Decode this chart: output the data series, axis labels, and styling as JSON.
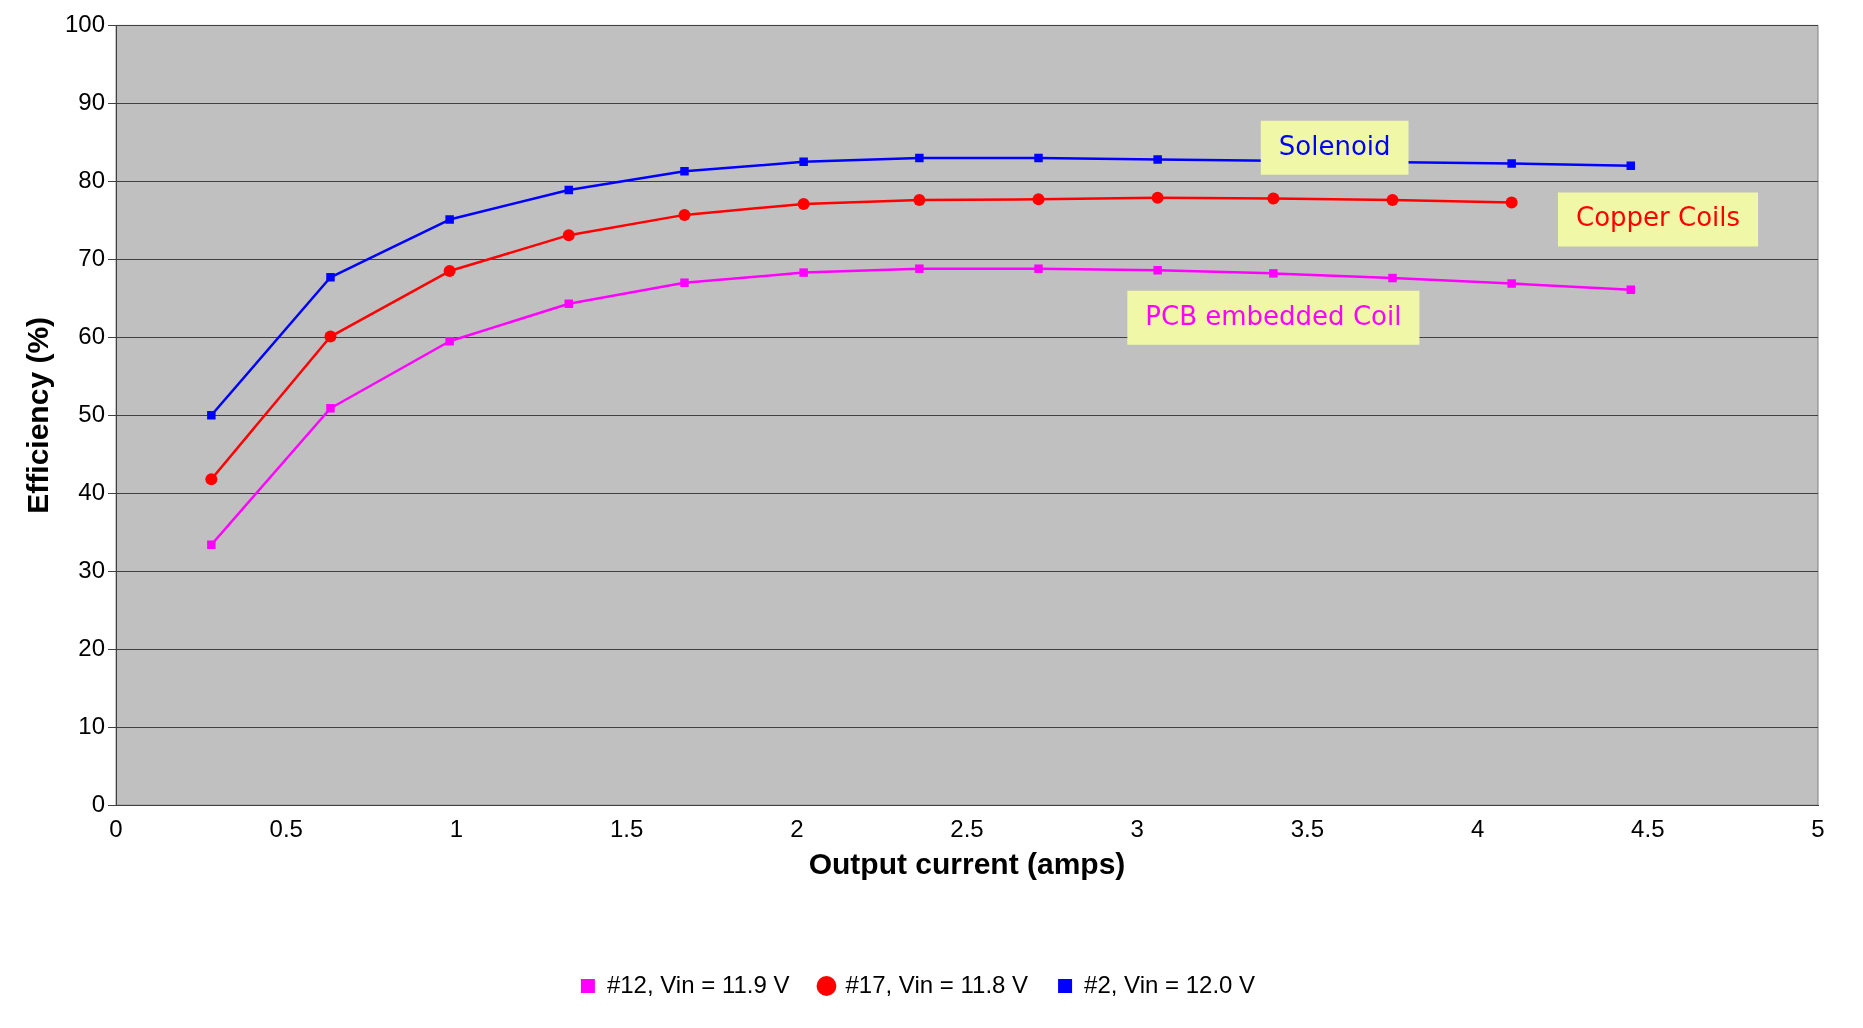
{
  "chart_data": {
    "type": "line",
    "xlabel": "Output current (amps)",
    "ylabel": "Efficiency (%)",
    "xlim": [
      0,
      5
    ],
    "xticks": [
      0,
      0.5,
      1,
      1.5,
      2,
      2.5,
      3,
      3.5,
      4,
      4.5,
      5
    ],
    "ylim": [
      0,
      100
    ],
    "yticks": [
      0,
      10,
      20,
      30,
      40,
      50,
      60,
      70,
      80,
      90,
      100
    ],
    "grid": "y",
    "legend": "bottom",
    "x": [
      0.28,
      0.63,
      0.98,
      1.33,
      1.67,
      2.02,
      2.36,
      2.71,
      3.06,
      3.4,
      3.75,
      4.1,
      4.45
    ],
    "series": [
      {
        "name": "#12, Vin = 11.9 V",
        "color": "#ff00ff",
        "marker": "square",
        "values": [
          33.4,
          50.9,
          59.5,
          64.3,
          67.0,
          68.3,
          68.8,
          68.8,
          68.6,
          68.2,
          67.6,
          66.9,
          66.1
        ]
      },
      {
        "name": "#17, Vin = 11.8 V",
        "color": "#ff0000",
        "marker": "circle",
        "values": [
          41.8,
          60.1,
          68.5,
          73.1,
          75.7,
          77.1,
          77.6,
          77.7,
          77.9,
          77.8,
          77.6,
          77.3,
          null
        ]
      },
      {
        "name": "#2, Vin = 12.0 V",
        "color": "#0000ff",
        "marker": "square",
        "values": [
          50.0,
          67.7,
          75.1,
          78.9,
          81.3,
          82.5,
          83.0,
          83.0,
          82.8,
          null,
          null,
          82.3,
          82.0
        ]
      }
    ],
    "annotations": [
      "PCB embedded Coil",
      "Copper Coils",
      "Solenoid"
    ]
  }
}
